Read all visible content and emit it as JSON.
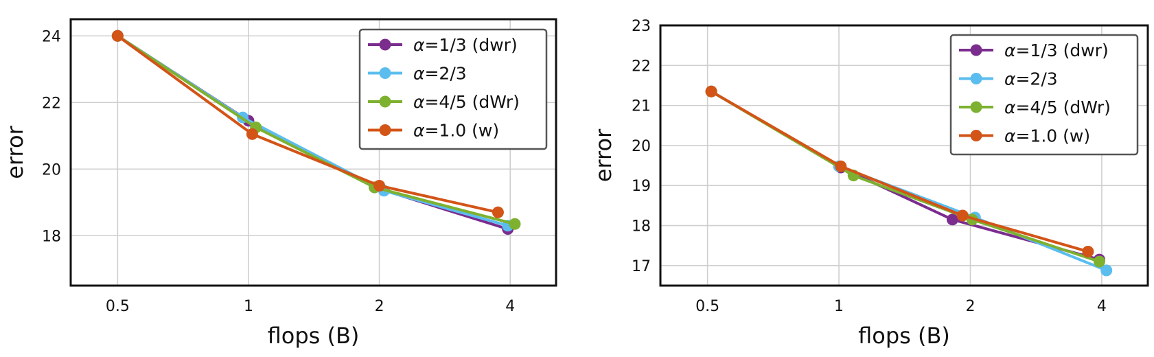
{
  "chart_data": [
    {
      "type": "line",
      "xlabel": "flops (B)",
      "ylabel": "error",
      "xscale": "log2",
      "xlim": [
        0.39,
        5.1
      ],
      "ylim": [
        16.5,
        24.5
      ],
      "xticks": [
        0.5,
        1,
        2,
        4
      ],
      "xtick_labels": [
        "0.5",
        "1",
        "2",
        "4"
      ],
      "yticks": [
        18,
        20,
        22,
        24
      ],
      "ytick_labels": [
        "18",
        "20",
        "22",
        "24"
      ],
      "grid": true,
      "legend_position": "top-right",
      "series": [
        {
          "name": "α=1/3 (dwr)",
          "legend_symbol": "α",
          "legend_rest": "=1/3 (dwr)",
          "color": "#7B2D8E",
          "x": [
            0.5,
            1.0,
            1.95,
            3.95
          ],
          "y": [
            24.0,
            21.45,
            19.45,
            18.2
          ]
        },
        {
          "name": "α=2/3",
          "legend_symbol": "α",
          "legend_rest": "=2/3",
          "color": "#5BBDEE",
          "x": [
            0.5,
            0.97,
            2.05,
            3.95
          ],
          "y": [
            24.0,
            21.55,
            19.35,
            18.3
          ]
        },
        {
          "name": "α=4/5 (dWr)",
          "legend_symbol": "α",
          "legend_rest": "=4/5 (dWr)",
          "color": "#7DB12F",
          "x": [
            0.5,
            1.04,
            1.95,
            4.1
          ],
          "y": [
            24.0,
            21.25,
            19.45,
            18.35
          ]
        },
        {
          "name": "α=1.0 (w)",
          "legend_symbol": "α",
          "legend_rest": "=1.0 (w)",
          "color": "#D25417",
          "x": [
            0.5,
            1.02,
            2.0,
            3.75
          ],
          "y": [
            24.0,
            21.05,
            19.5,
            18.7
          ]
        }
      ]
    },
    {
      "type": "line",
      "xlabel": "flops (B)",
      "ylabel": "error",
      "xscale": "log2",
      "xlim": [
        0.39,
        5.1
      ],
      "ylim": [
        16.5,
        23.0
      ],
      "xticks": [
        0.5,
        1,
        2,
        4
      ],
      "xtick_labels": [
        "0.5",
        "1",
        "2",
        "4"
      ],
      "yticks": [
        17,
        18,
        19,
        20,
        21,
        22,
        23
      ],
      "ytick_labels": [
        "17",
        "18",
        "19",
        "20",
        "21",
        "22",
        "23"
      ],
      "grid": true,
      "legend_position": "top-right",
      "series": [
        {
          "name": "α=1/3 (dwr)",
          "legend_symbol": "α",
          "legend_rest": "=1/3 (dwr)",
          "color": "#7B2D8E",
          "x": [
            0.51,
            1.01,
            1.82,
            3.95
          ],
          "y": [
            21.35,
            19.45,
            18.15,
            17.15
          ]
        },
        {
          "name": "α=2/3",
          "legend_symbol": "α",
          "legend_rest": "=2/3",
          "color": "#5BBDEE",
          "x": [
            0.51,
            1.0,
            2.05,
            4.1
          ],
          "y": [
            21.35,
            19.48,
            18.2,
            16.88
          ]
        },
        {
          "name": "α=4/5 (dWr)",
          "legend_symbol": "α",
          "legend_rest": "=4/5 (dWr)",
          "color": "#7DB12F",
          "x": [
            0.51,
            1.08,
            2.02,
            3.95
          ],
          "y": [
            21.35,
            19.25,
            18.15,
            17.1
          ]
        },
        {
          "name": "α=1.0 (w)",
          "legend_symbol": "α",
          "legend_rest": "=1.0 (w)",
          "color": "#D25417",
          "x": [
            0.51,
            1.01,
            1.92,
            3.72
          ],
          "y": [
            21.35,
            19.48,
            18.25,
            17.35
          ]
        }
      ]
    }
  ]
}
